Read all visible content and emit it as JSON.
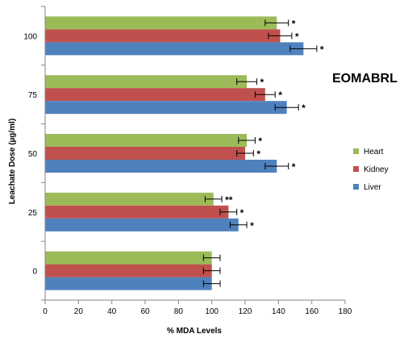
{
  "chart_data": {
    "type": "bar",
    "orientation": "horizontal",
    "title": "",
    "annotation": "EOMABRL",
    "xlabel": "% MDA Levels",
    "ylabel": "Leachate Dose (µg/ml)",
    "xlim": [
      0,
      180
    ],
    "x_ticks": [
      "0",
      "20",
      "40",
      "60",
      "80",
      "100",
      "120",
      "140",
      "160",
      "180"
    ],
    "categories": [
      "0",
      "25",
      "50",
      "75",
      "100"
    ],
    "grid": false,
    "legend_position": "right",
    "series": [
      {
        "name": "Heart",
        "color": "#9BBB59",
        "values": [
          100,
          101,
          121,
          121,
          139
        ],
        "errors": [
          5,
          5,
          5,
          6,
          7
        ],
        "markers": [
          "",
          "**",
          "*",
          "*",
          "*"
        ]
      },
      {
        "name": "Kidney",
        "color": "#C0504D",
        "values": [
          100,
          110,
          120,
          132,
          141
        ],
        "errors": [
          5,
          5,
          5,
          6,
          7
        ],
        "markers": [
          "",
          "*",
          "*",
          "*",
          "*"
        ]
      },
      {
        "name": "Liver",
        "color": "#4F81BD",
        "values": [
          100,
          116,
          139,
          145,
          155
        ],
        "errors": [
          5,
          5,
          7,
          7,
          8
        ],
        "markers": [
          "",
          "*",
          "*",
          "*",
          "*"
        ]
      }
    ]
  }
}
